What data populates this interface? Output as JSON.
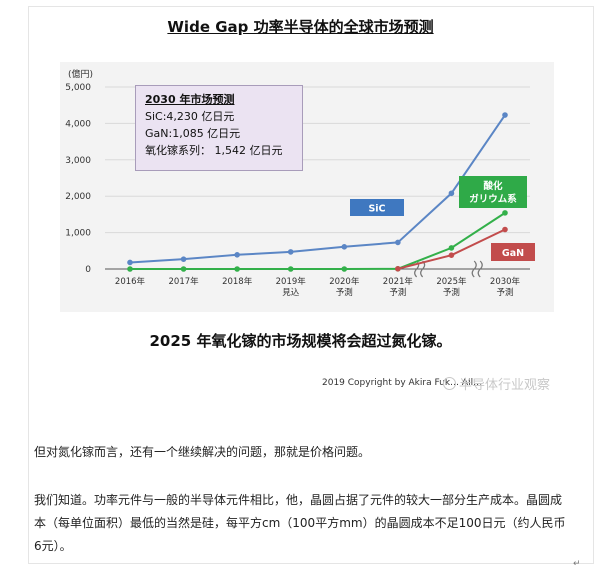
{
  "page": {
    "title": "Wide Gap 功率半导体的全球市场预测",
    "sub_heading": "2025 年氧化镓的市场规模将会超过氮化镓。",
    "copyright": "2019 Copyright by Akira Fuk…  All…",
    "watermark": "半导体行业观察",
    "para1": "但对氮化镓而言，还有一个继续解决的问题，那就是价格问题。",
    "para2": "我们知道。功率元件与一般的半导体元件相比，他，晶圆占据了元件的较大一部分生产成本。晶圆成本（每单位面积）最低的当然是硅，每平方cm（100平方mm）的晶圆成本不足100日元（约人民币6元）。",
    "corner_mark": "↵"
  },
  "callout": {
    "title": "2030 年市场预测",
    "line1": "SiC:4,230 亿日元",
    "line2": "GaN:1,085 亿日元",
    "line3": "氧化镓系列： 1,542 亿日元"
  },
  "chart_data": {
    "type": "line",
    "unit_label": "(億円)",
    "x": [
      "2016年",
      "2017年",
      "2018年",
      "2019年\n見込",
      "2020年\n予測",
      "2021年\n予測",
      "2025年\n予測",
      "2030年\n予測"
    ],
    "ylim": [
      0,
      5000
    ],
    "yticks": [
      0,
      1000,
      2000,
      3000,
      4000,
      5000
    ],
    "ytick_labels": [
      "0",
      "1,000",
      "2,000",
      "3,000",
      "4,000",
      "5,000"
    ],
    "grid": true,
    "series": [
      {
        "name": "SiC",
        "color": "#5b86c5",
        "label_bg": "#3f78c0",
        "values": [
          180,
          270,
          390,
          470,
          610,
          730,
          2080,
          4230
        ]
      },
      {
        "name": "酸化\nガリウム系",
        "color": "#33b04a",
        "label_bg": "#2faa48",
        "values": [
          0,
          0,
          0,
          0,
          0,
          5,
          580,
          1542
        ]
      },
      {
        "name": "GaN",
        "color": "#c24c4c",
        "label_bg": "#c24c4c",
        "values": [
          null,
          null,
          null,
          null,
          null,
          5,
          380,
          1085
        ]
      }
    ]
  }
}
